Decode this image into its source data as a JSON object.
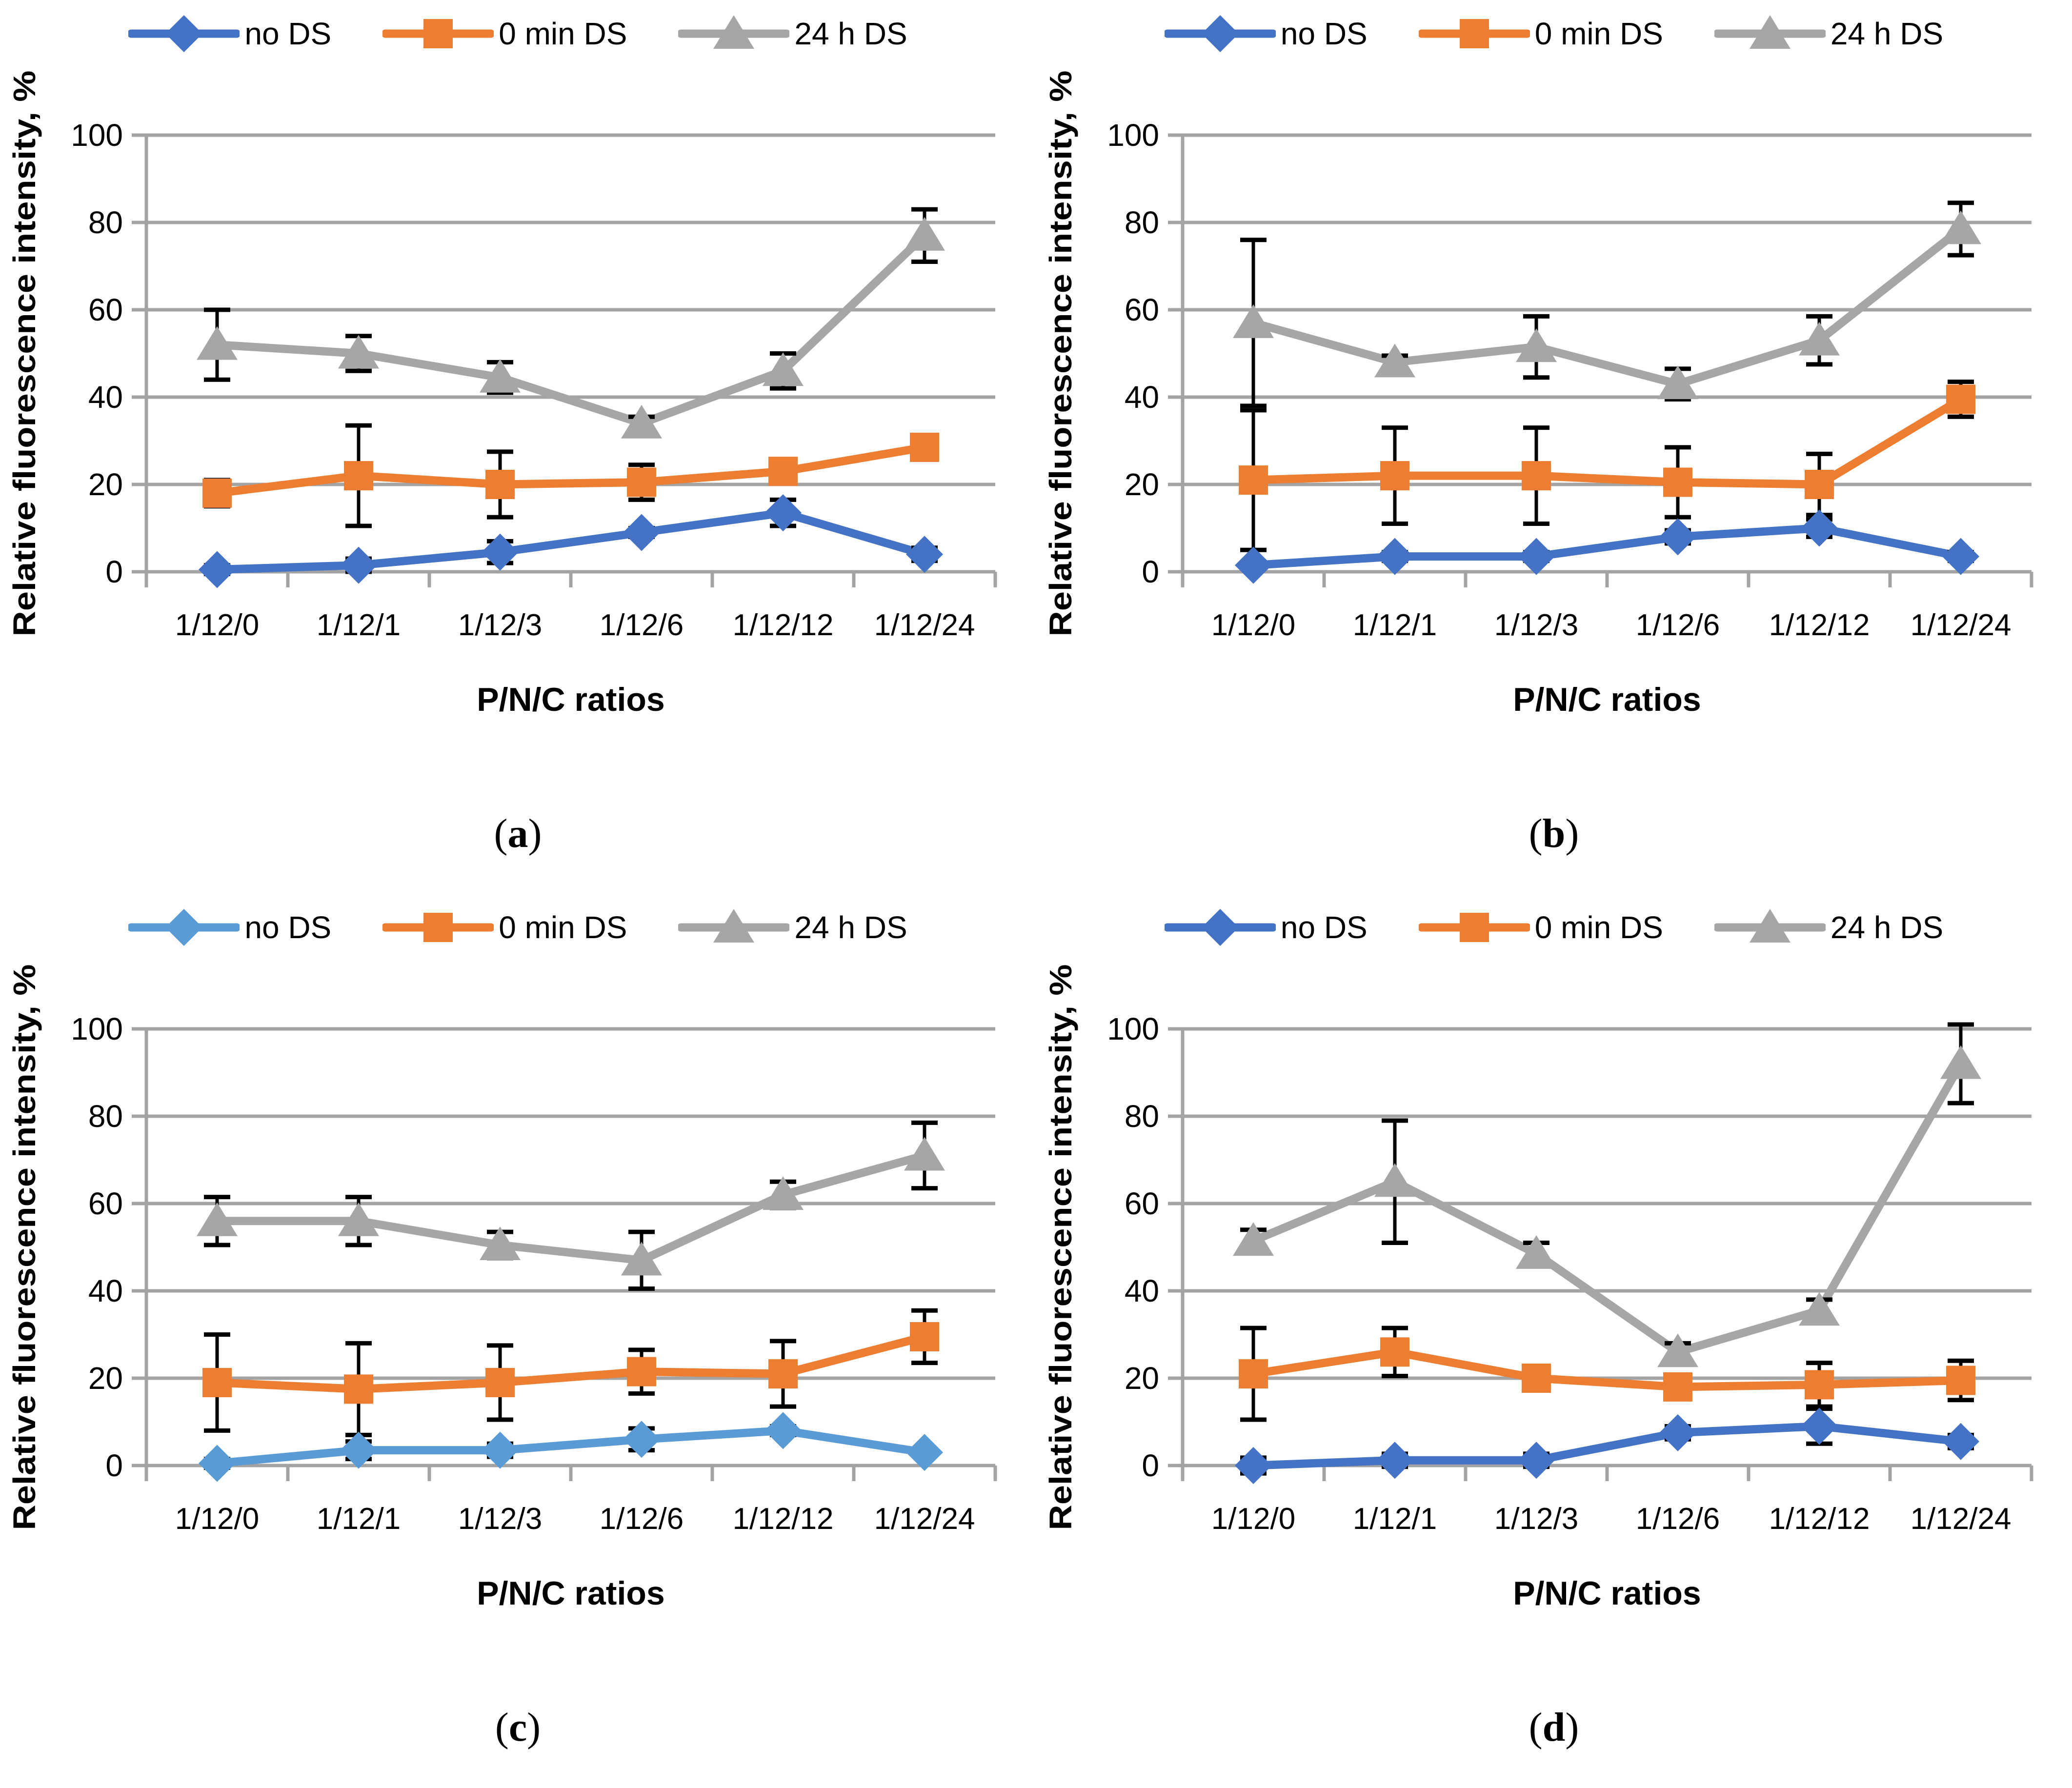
{
  "styles": {
    "background": "#FFFFFF",
    "grid_color": "#A3A3A3",
    "error_color": "#000000",
    "text_color": "#000000",
    "blue_dark": "#4472C4",
    "blue_light": "#5B9BD5",
    "orange": "#ED7D31",
    "gray": "#A6A6A6"
  },
  "chart_data": [
    {
      "type": "line",
      "caption": {
        "open": "(",
        "letter": "a",
        "close": ")"
      },
      "xlabel": "P/N/C ratios",
      "ylabel": "Relative fluorescence intensity, %",
      "ylim": [
        0,
        100
      ],
      "yticks": [
        0,
        20,
        40,
        60,
        80,
        100
      ],
      "grid": "horizontal",
      "legend_position": "top",
      "categories": [
        "1/12/0",
        "1/12/1",
        "1/12/3",
        "1/12/6",
        "1/12/12",
        "1/12/24"
      ],
      "series": [
        {
          "name": "no DS",
          "color": "#4472C4",
          "marker": "diamond",
          "values": [
            0.5,
            1.5,
            4.5,
            9,
            13.5,
            4
          ],
          "errors": [
            1,
            1.5,
            2.5,
            1,
            3,
            1.5
          ]
        },
        {
          "name": "0 min DS",
          "color": "#ED7D31",
          "marker": "square",
          "values": [
            18,
            22,
            20,
            20.5,
            23,
            28.5
          ],
          "errors": [
            3,
            11.5,
            7.5,
            4,
            1.5,
            2
          ]
        },
        {
          "name": "24 h DS",
          "color": "#A6A6A6",
          "marker": "triangle",
          "values": [
            52,
            50,
            44.5,
            34,
            46,
            77
          ],
          "errors": [
            8,
            4,
            3.5,
            1.5,
            4,
            6
          ]
        }
      ]
    },
    {
      "type": "line",
      "caption": {
        "open": "(",
        "letter": "b",
        "close": ")"
      },
      "xlabel": "P/N/C ratios",
      "ylabel": "Relative fluorescence intensity, %",
      "ylim": [
        0,
        100
      ],
      "yticks": [
        0,
        20,
        40,
        60,
        80,
        100
      ],
      "grid": "horizontal",
      "legend_position": "top",
      "categories": [
        "1/12/0",
        "1/12/1",
        "1/12/3",
        "1/12/6",
        "1/12/12",
        "1/12/24"
      ],
      "series": [
        {
          "name": "no DS",
          "color": "#4472C4",
          "marker": "diamond",
          "values": [
            1.5,
            3.5,
            3.5,
            8,
            10,
            3.5
          ],
          "errors": [
            0.5,
            1,
            1,
            1.5,
            2,
            1
          ]
        },
        {
          "name": "0 min DS",
          "color": "#ED7D31",
          "marker": "square",
          "values": [
            21,
            22,
            22,
            20.5,
            20,
            39.5
          ],
          "errors": [
            16,
            11,
            11,
            8,
            7,
            4
          ]
        },
        {
          "name": "24 h DS",
          "color": "#A6A6A6",
          "marker": "triangle",
          "values": [
            57,
            48,
            51.5,
            43,
            53,
            78.5
          ],
          "errors": [
            19,
            1.5,
            7,
            3.5,
            5.5,
            6
          ]
        }
      ]
    },
    {
      "type": "line",
      "caption": {
        "open": "(",
        "letter": "c",
        "close": ")"
      },
      "xlabel": "P/N/C ratios",
      "ylabel": "Relative fluorescence intensity, %",
      "ylim": [
        0,
        100
      ],
      "yticks": [
        0,
        20,
        40,
        60,
        80,
        100
      ],
      "grid": "horizontal",
      "legend_position": "top",
      "categories": [
        "1/12/0",
        "1/12/1",
        "1/12/3",
        "1/12/6",
        "1/12/12",
        "1/12/24"
      ],
      "series": [
        {
          "name": "no DS",
          "color": "#5B9BD5",
          "marker": "diamond",
          "values": [
            0.5,
            3.5,
            3.5,
            6,
            8,
            3
          ],
          "errors": [
            1,
            2,
            1.5,
            2.5,
            1,
            0.5
          ]
        },
        {
          "name": "0 min DS",
          "color": "#ED7D31",
          "marker": "square",
          "values": [
            19,
            17.5,
            19,
            21.5,
            21,
            29.5
          ],
          "errors": [
            11,
            10.5,
            8.5,
            5,
            7.5,
            6
          ]
        },
        {
          "name": "24 h DS",
          "color": "#A6A6A6",
          "marker": "triangle",
          "values": [
            56,
            56,
            50.5,
            47,
            62,
            71
          ],
          "errors": [
            5.5,
            5.5,
            3,
            6.5,
            3,
            7.5
          ]
        }
      ]
    },
    {
      "type": "line",
      "caption": {
        "open": "(",
        "letter": "d",
        "close": ")"
      },
      "xlabel": "P/N/C ratios",
      "ylabel": "Relative fluorescence intensity, %",
      "ylim": [
        0,
        100
      ],
      "yticks": [
        0,
        20,
        40,
        60,
        80,
        100
      ],
      "grid": "horizontal",
      "legend_position": "top",
      "categories": [
        "1/12/0",
        "1/12/1",
        "1/12/3",
        "1/12/6",
        "1/12/12",
        "1/12/24"
      ],
      "series": [
        {
          "name": "no DS",
          "color": "#4472C4",
          "marker": "diamond",
          "values": [
            0,
            1.2,
            1.2,
            7.5,
            9,
            5.5
          ],
          "errors": [
            1.8,
            1.5,
            1.5,
            1.5,
            4,
            1.5
          ]
        },
        {
          "name": "0 min DS",
          "color": "#ED7D31",
          "marker": "square",
          "values": [
            21,
            26,
            20,
            18,
            18.5,
            19.5
          ],
          "errors": [
            10.5,
            5.5,
            2,
            2,
            5,
            4.5
          ]
        },
        {
          "name": "24 h DS",
          "color": "#A6A6A6",
          "marker": "triangle",
          "values": [
            51.5,
            65,
            48.5,
            26,
            35.5,
            92
          ],
          "errors": [
            2.5,
            14,
            2.5,
            2,
            2.5,
            9
          ]
        }
      ]
    }
  ]
}
